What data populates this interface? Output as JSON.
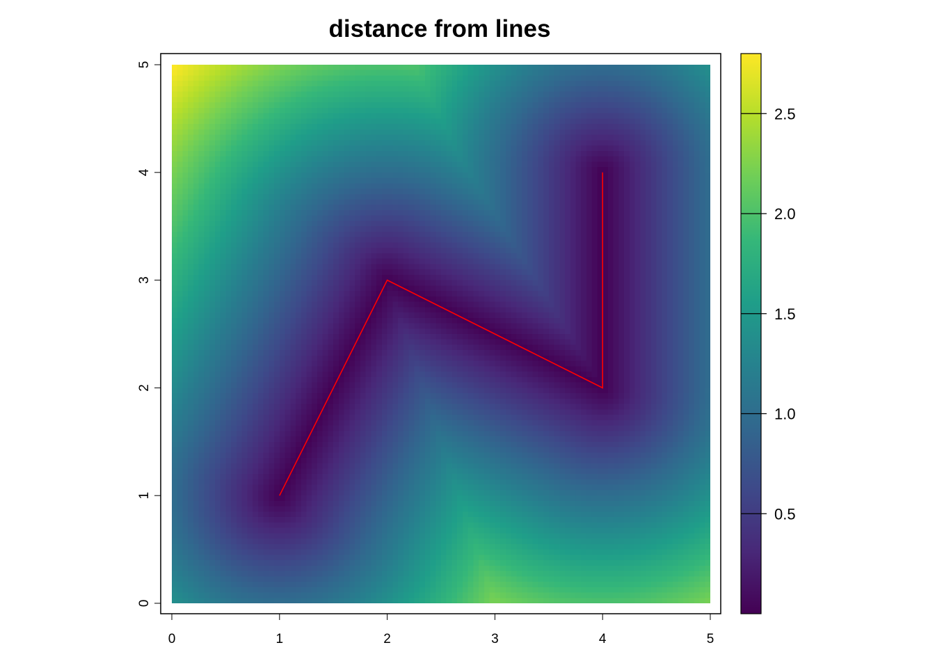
{
  "chart_data": {
    "type": "heatmap",
    "title": "distance from lines",
    "xlabel": "",
    "ylabel": "",
    "xlim": [
      0,
      5
    ],
    "ylim": [
      0,
      5
    ],
    "x_ticks": [
      0,
      1,
      2,
      3,
      4,
      5
    ],
    "y_ticks": [
      0,
      1,
      2,
      3,
      4,
      5
    ],
    "grid": false,
    "raster_cells": [
      100,
      100
    ],
    "line": {
      "color": "#ff0000",
      "points": [
        [
          1,
          1
        ],
        [
          2,
          3
        ],
        [
          4,
          2
        ],
        [
          4,
          4
        ]
      ]
    },
    "colorbar": {
      "palette": "viridis",
      "colors": [
        "#440154",
        "#482878",
        "#3e4989",
        "#31688e",
        "#26828e",
        "#1f9e89",
        "#35b779",
        "#6ece58",
        "#b5de2b",
        "#fde725"
      ],
      "range": [
        0,
        2.8
      ],
      "ticks": [
        0.5,
        1.0,
        1.5,
        2.0,
        2.5
      ],
      "tick_labels": [
        "0.5",
        "1.0",
        "1.5",
        "2.0",
        "2.5"
      ],
      "placement": "right"
    }
  }
}
